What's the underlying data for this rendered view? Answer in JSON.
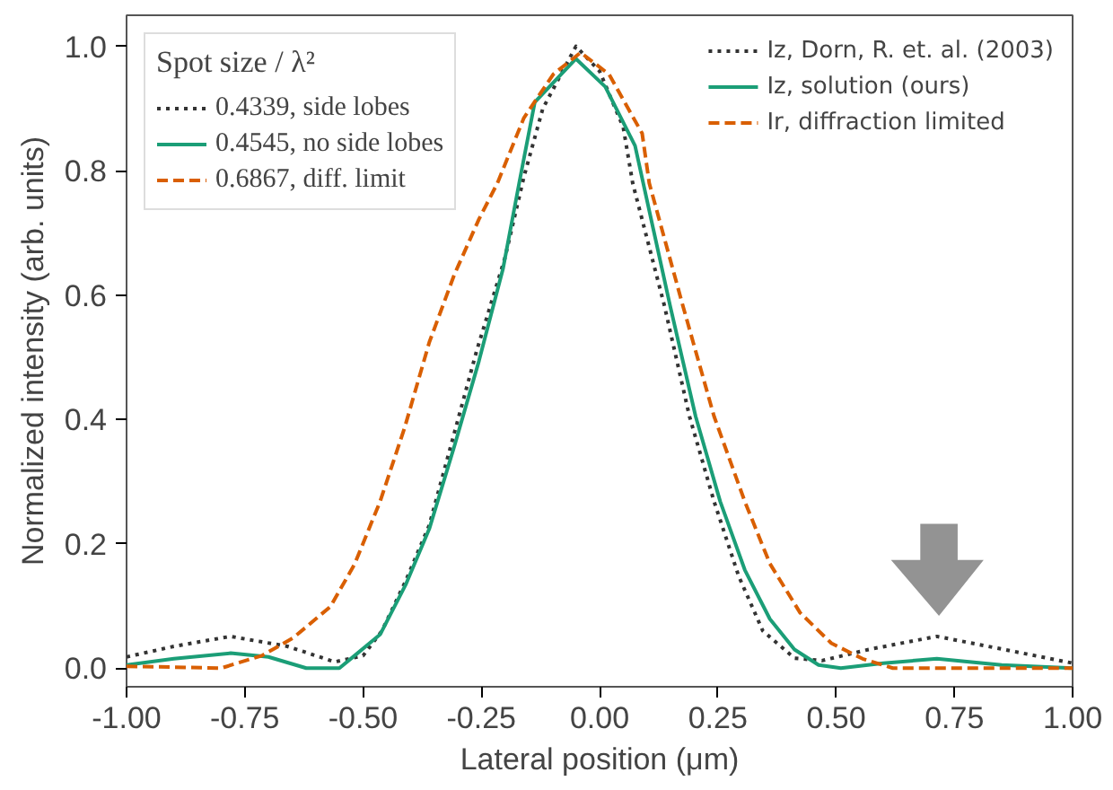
{
  "chart_data": {
    "type": "line",
    "xlabel": "Lateral position (μm)",
    "ylabel": "Normalized intensity (arb. units)",
    "xlim": [
      -1.0,
      1.0
    ],
    "ylim": [
      -0.03,
      1.05
    ],
    "xticks": [
      {
        "value": -1.0,
        "label": "-1.00"
      },
      {
        "value": -0.75,
        "label": "-0.75"
      },
      {
        "value": -0.5,
        "label": "-0.50"
      },
      {
        "value": -0.25,
        "label": "-0.25"
      },
      {
        "value": 0.0,
        "label": "0.00"
      },
      {
        "value": 0.25,
        "label": "0.25"
      },
      {
        "value": 0.5,
        "label": "0.50"
      },
      {
        "value": 0.75,
        "label": "0.75"
      },
      {
        "value": 1.0,
        "label": "1.00"
      }
    ],
    "yticks": [
      {
        "value": 0.0,
        "label": "0.0"
      },
      {
        "value": 0.2,
        "label": "0.2"
      },
      {
        "value": 0.4,
        "label": "0.4"
      },
      {
        "value": 0.6,
        "label": "0.6"
      },
      {
        "value": 0.8,
        "label": "0.8"
      },
      {
        "value": 1.0,
        "label": "1.0"
      }
    ],
    "grid": false,
    "legend": "top right",
    "legend_title": "Spot size / λ²",
    "annotations": [
      "0.4339, side lobes",
      "0.4545, no side lobes",
      "0.6867, diff. limit"
    ],
    "series": [
      {
        "name": "Iz, Dorn, R. et. al. (2003)",
        "color": "#333333",
        "line_style": "dotted",
        "x": [
          -1.0,
          -0.9,
          -0.78,
          -0.66,
          -0.56,
          -0.5,
          -0.46,
          -0.41,
          -0.36,
          -0.31,
          -0.26,
          -0.2,
          -0.16,
          -0.12,
          -0.05,
          0.0,
          0.05,
          0.07,
          0.137,
          0.19,
          0.242,
          0.294,
          0.345,
          0.412,
          0.47,
          0.569,
          0.713,
          0.855,
          1.0
        ],
        "values": [
          0.018,
          0.035,
          0.051,
          0.035,
          0.01,
          0.02,
          0.06,
          0.14,
          0.23,
          0.37,
          0.51,
          0.66,
          0.79,
          0.9,
          1.0,
          0.96,
          0.87,
          0.78,
          0.583,
          0.405,
          0.268,
          0.148,
          0.06,
          0.016,
          0.012,
          0.03,
          0.051,
          0.03,
          0.008
        ]
      },
      {
        "name": "Iz, solution (ours)",
        "color": "#1b9e77",
        "line_style": "solid",
        "x": [
          -1.0,
          -0.9,
          -0.78,
          -0.7,
          -0.62,
          -0.55,
          -0.518,
          -0.464,
          -0.41,
          -0.36,
          -0.307,
          -0.255,
          -0.204,
          -0.17,
          -0.137,
          -0.05,
          0.012,
          0.075,
          0.149,
          0.203,
          0.255,
          0.307,
          0.36,
          0.412,
          0.463,
          0.51,
          0.6,
          0.713,
          0.85,
          1.0
        ],
        "values": [
          0.005,
          0.015,
          0.024,
          0.018,
          0.0,
          0.0,
          0.02,
          0.054,
          0.134,
          0.224,
          0.357,
          0.494,
          0.643,
          0.78,
          0.91,
          0.98,
          0.935,
          0.84,
          0.583,
          0.405,
          0.268,
          0.158,
          0.079,
          0.03,
          0.005,
          0.0,
          0.008,
          0.015,
          0.005,
          0.0
        ]
      },
      {
        "name": "Ir, diffraction limited",
        "color": "#d95f02",
        "line_style": "dashed",
        "x": [
          -1.0,
          -0.8,
          -0.714,
          -0.647,
          -0.569,
          -0.518,
          -0.464,
          -0.412,
          -0.36,
          -0.307,
          -0.255,
          -0.216,
          -0.16,
          -0.098,
          -0.04,
          0.02,
          0.09,
          0.105,
          0.176,
          0.242,
          0.307,
          0.36,
          0.424,
          0.49,
          0.556,
          0.62,
          0.8,
          1.0
        ],
        "values": [
          0.003,
          0.0,
          0.02,
          0.049,
          0.099,
          0.167,
          0.268,
          0.387,
          0.524,
          0.633,
          0.722,
          0.78,
          0.885,
          0.955,
          0.99,
          0.955,
          0.86,
          0.78,
          0.583,
          0.405,
          0.268,
          0.168,
          0.089,
          0.04,
          0.015,
          0.0,
          0.0,
          0.0
        ]
      }
    ]
  }
}
